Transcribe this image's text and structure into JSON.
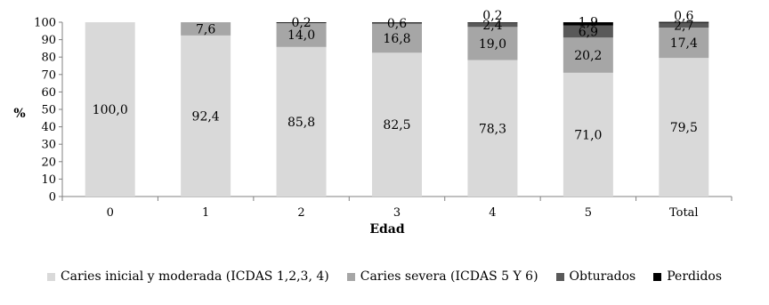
{
  "chart_data": {
    "type": "bar",
    "stacked": true,
    "categories": [
      "0",
      "1",
      "2",
      "3",
      "4",
      "5",
      "Total"
    ],
    "xlabel": "Edad",
    "ylabel": "%",
    "ylim": [
      0,
      100
    ],
    "yticks": [
      0,
      10,
      20,
      30,
      40,
      50,
      60,
      70,
      80,
      90,
      100
    ],
    "grid": false,
    "legend_position": "bottom",
    "series": [
      {
        "name": "Caries inicial y moderada (ICDAS 1,2,3, 4)",
        "color": "#d9d9d9",
        "values": [
          100.0,
          92.4,
          85.8,
          82.5,
          78.3,
          71.0,
          79.5
        ],
        "labels": [
          "100,0",
          "92,4",
          "85,8",
          "82,5",
          "78,3",
          "71,0",
          "79,5"
        ]
      },
      {
        "name": "Caries severa  (ICDAS 5 Y 6)",
        "color": "#a6a6a6",
        "values": [
          0,
          7.6,
          14.0,
          16.8,
          19.0,
          20.2,
          17.4
        ],
        "labels": [
          "",
          "7,6",
          "14,0",
          "16,8",
          "19,0",
          "20,2",
          "17,4"
        ]
      },
      {
        "name": "Obturados",
        "color": "#595959",
        "values": [
          0,
          0,
          0,
          0,
          2.4,
          6.9,
          2.7
        ],
        "labels": [
          "",
          "",
          "",
          "",
          "2,4",
          "6,9",
          "2,7"
        ]
      },
      {
        "name": "Perdidos",
        "color": "#000000",
        "values": [
          0,
          0,
          0.2,
          0.6,
          0.2,
          1.9,
          0.6
        ],
        "labels": [
          "",
          "",
          "0,2",
          "0,6",
          "0,2",
          "1,9",
          "0,6"
        ]
      }
    ]
  }
}
